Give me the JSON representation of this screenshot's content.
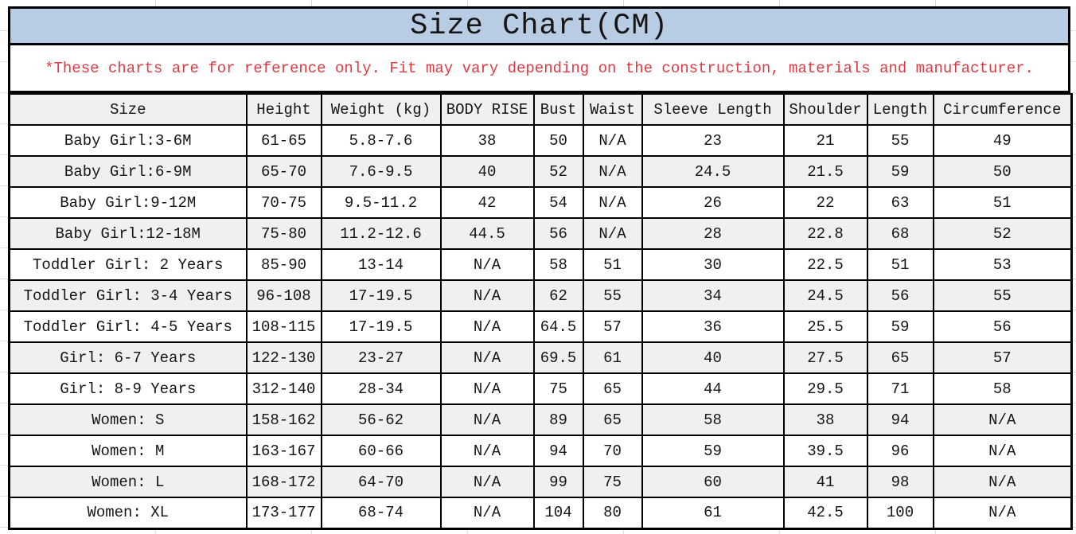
{
  "title": "Size Chart(CM)",
  "disclaimer": "*These charts are for reference only. Fit may vary depending on the construction, materials and manufacturer.",
  "colors": {
    "title_bg": "#b8cce4",
    "stripe": "#f0f0f0",
    "border": "#000000",
    "disclaimer_red": "#dd3b43"
  },
  "chart_data": {
    "type": "table",
    "title": "Size Chart(CM)",
    "columns": [
      "Size",
      "Height",
      "Weight (kg)",
      "BODY RISE",
      "Bust",
      "Waist",
      "Sleeve Length",
      "Shoulder",
      "Length",
      "Circumference"
    ],
    "rows": [
      [
        "Baby Girl:3-6M",
        "61-65",
        "5.8-7.6",
        "38",
        "50",
        "N/A",
        "23",
        "21",
        "55",
        "49"
      ],
      [
        "Baby Girl:6-9M",
        "65-70",
        "7.6-9.5",
        "40",
        "52",
        "N/A",
        "24.5",
        "21.5",
        "59",
        "50"
      ],
      [
        "Baby Girl:9-12M",
        "70-75",
        "9.5-11.2",
        "42",
        "54",
        "N/A",
        "26",
        "22",
        "63",
        "51"
      ],
      [
        "Baby Girl:12-18M",
        "75-80",
        "11.2-12.6",
        "44.5",
        "56",
        "N/A",
        "28",
        "22.8",
        "68",
        "52"
      ],
      [
        "Toddler Girl: 2 Years",
        "85-90",
        "13-14",
        "N/A",
        "58",
        "51",
        "30",
        "22.5",
        "51",
        "53"
      ],
      [
        "Toddler Girl: 3-4 Years",
        "96-108",
        "17-19.5",
        "N/A",
        "62",
        "55",
        "34",
        "24.5",
        "56",
        "55"
      ],
      [
        "Toddler Girl: 4-5 Years",
        "108-115",
        "17-19.5",
        "N/A",
        "64.5",
        "57",
        "36",
        "25.5",
        "59",
        "56"
      ],
      [
        "Girl: 6-7 Years",
        "122-130",
        "23-27",
        "N/A",
        "69.5",
        "61",
        "40",
        "27.5",
        "65",
        "57"
      ],
      [
        "Girl: 8-9 Years",
        "312-140",
        "28-34",
        "N/A",
        "75",
        "65",
        "44",
        "29.5",
        "71",
        "58"
      ],
      [
        "Women: S",
        "158-162",
        "56-62",
        "N/A",
        "89",
        "65",
        "58",
        "38",
        "94",
        "N/A"
      ],
      [
        "Women: M",
        "163-167",
        "60-66",
        "N/A",
        "94",
        "70",
        "59",
        "39.5",
        "96",
        "N/A"
      ],
      [
        "Women: L",
        "168-172",
        "64-70",
        "N/A",
        "99",
        "75",
        "60",
        "41",
        "98",
        "N/A"
      ],
      [
        "Women: XL",
        "173-177",
        "68-74",
        "N/A",
        "104",
        "80",
        "61",
        "42.5",
        "100",
        "N/A"
      ]
    ]
  }
}
